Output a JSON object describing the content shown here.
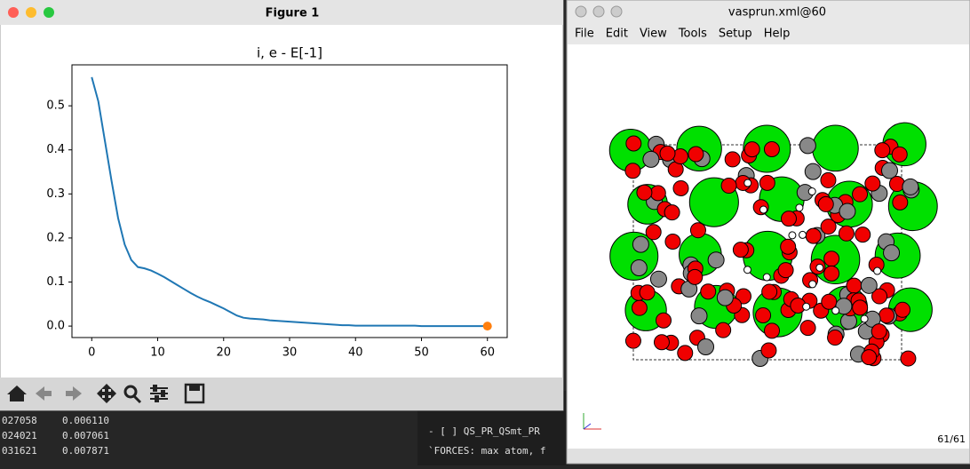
{
  "left_window": {
    "title": "Figure 1"
  },
  "chart_data": {
    "type": "line",
    "title": "i, e - E[-1]",
    "x": [
      0,
      1,
      2,
      3,
      4,
      5,
      6,
      7,
      8,
      9,
      10,
      11,
      12,
      13,
      14,
      15,
      16,
      17,
      18,
      19,
      20,
      21,
      22,
      23,
      24,
      25,
      26,
      27,
      28,
      29,
      30,
      31,
      32,
      33,
      34,
      35,
      36,
      37,
      38,
      39,
      40,
      41,
      42,
      43,
      44,
      45,
      46,
      47,
      48,
      49,
      50,
      51,
      52,
      53,
      54,
      55,
      56,
      57,
      58,
      59,
      60
    ],
    "series": [
      {
        "color": "#1f77b4",
        "values": [
          0.565,
          0.51,
          0.42,
          0.33,
          0.245,
          0.185,
          0.15,
          0.134,
          0.131,
          0.126,
          0.119,
          0.111,
          0.102,
          0.093,
          0.084,
          0.075,
          0.067,
          0.06,
          0.054,
          0.047,
          0.04,
          0.032,
          0.024,
          0.019,
          0.017,
          0.016,
          0.015,
          0.013,
          0.012,
          0.011,
          0.01,
          0.009,
          0.008,
          0.007,
          0.006,
          0.005,
          0.004,
          0.003,
          0.002,
          0.002,
          0.001,
          0.001,
          0.001,
          0.001,
          0.001,
          0.001,
          0.001,
          0.001,
          0.001,
          0.001,
          0,
          0,
          0,
          0,
          0,
          0,
          0,
          0,
          0,
          0,
          0
        ]
      }
    ],
    "marker": {
      "x": 60,
      "y": 0,
      "color": "#ff7f0e"
    },
    "xlim": [
      -3,
      63
    ],
    "ylim": [
      -0.026,
      0.593
    ],
    "xticks": [
      0,
      10,
      20,
      30,
      40,
      50,
      60
    ],
    "yticks": [
      {
        "value": 0,
        "label": "0.0"
      },
      0.1,
      0.2,
      0.3,
      0.4,
      0.5
    ]
  },
  "right_window": {
    "title": "vasprun.xml@60",
    "menu": [
      "File",
      "Edit",
      "View",
      "Tools",
      "Setup",
      "Help"
    ],
    "status": "61/61"
  },
  "terminal": {
    "left_lines": [
      [
        "027058",
        "0.006110"
      ],
      [
        "024021",
        "0.007061"
      ],
      [
        "031621",
        "0.007871"
      ]
    ],
    "right_lines": [
      "- [ ] QS_PR_QSmt_PR",
      "`FORCES: max atom, f"
    ]
  }
}
